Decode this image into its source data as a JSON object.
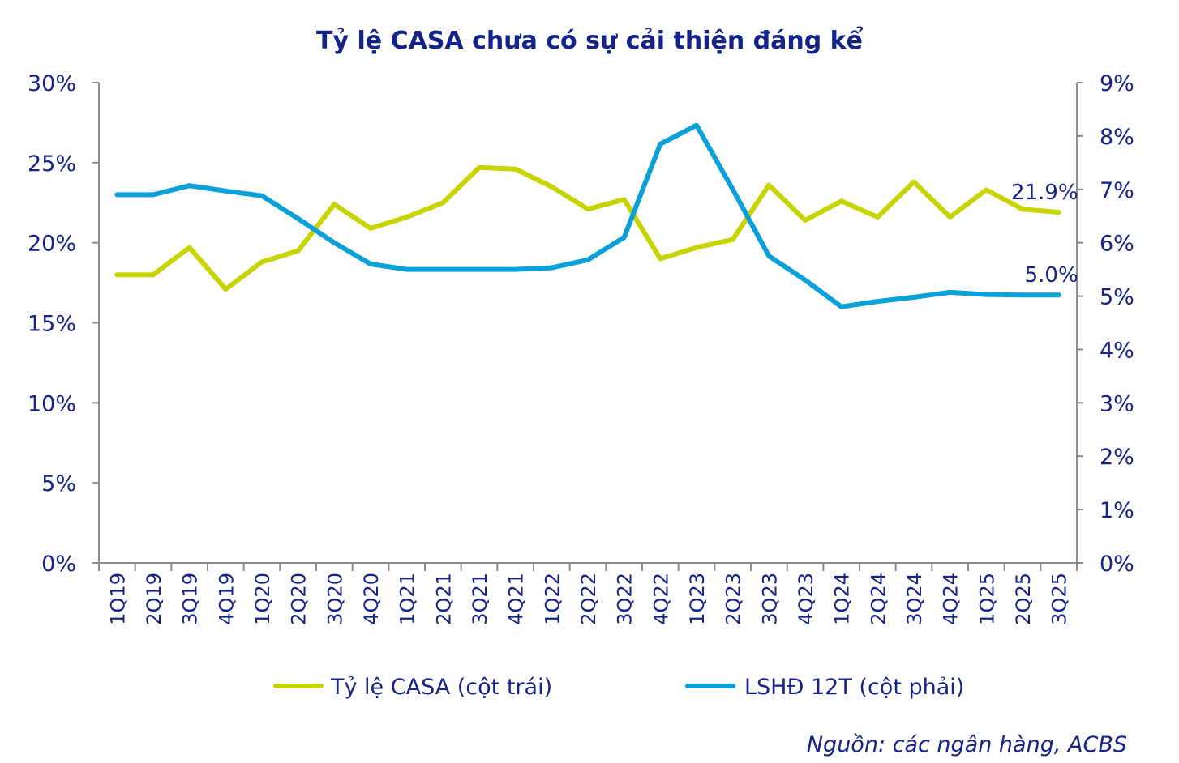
{
  "chart_data": {
    "type": "line",
    "title": "Tỷ lệ CASA chưa có sự cải thiện đáng kể",
    "categories": [
      "1Q19",
      "2Q19",
      "3Q19",
      "4Q19",
      "1Q20",
      "2Q20",
      "3Q20",
      "4Q20",
      "1Q21",
      "2Q21",
      "3Q21",
      "4Q21",
      "1Q22",
      "2Q22",
      "3Q22",
      "4Q22",
      "1Q23",
      "2Q23",
      "3Q23",
      "4Q23",
      "1Q24",
      "2Q24",
      "3Q24",
      "4Q24",
      "1Q25",
      "2Q25",
      "3Q25"
    ],
    "left_axis": {
      "ylim": [
        0,
        30
      ],
      "ticks": [
        "0%",
        "5%",
        "10%",
        "15%",
        "20%",
        "25%",
        "30%"
      ]
    },
    "right_axis": {
      "ylim": [
        0,
        9
      ],
      "ticks": [
        "0%",
        "1%",
        "2%",
        "3%",
        "4%",
        "5%",
        "6%",
        "7%",
        "8%",
        "9%"
      ]
    },
    "series": [
      {
        "name": "Tỷ lệ CASA (cột trái)",
        "axis": "left",
        "color": "#c8d400",
        "values": [
          18.0,
          18.0,
          19.7,
          17.1,
          18.8,
          19.5,
          22.4,
          20.9,
          21.6,
          22.5,
          24.7,
          24.6,
          23.5,
          22.1,
          22.7,
          19.0,
          19.7,
          20.2,
          23.6,
          21.4,
          22.6,
          21.6,
          23.8,
          21.6,
          23.3,
          22.1,
          21.9
        ]
      },
      {
        "name": "LSHĐ 12T (cột phải)",
        "axis": "right",
        "color": "#0aa0d8",
        "values": [
          6.9,
          6.9,
          7.07,
          6.97,
          6.88,
          6.45,
          6.0,
          5.6,
          5.5,
          5.5,
          5.5,
          5.5,
          5.53,
          5.68,
          6.1,
          7.85,
          8.2,
          7.0,
          5.75,
          5.3,
          4.8,
          4.9,
          4.98,
          5.07,
          5.03,
          5.02,
          5.02
        ]
      }
    ],
    "annotations": [
      {
        "series": 0,
        "index": 26,
        "text": "21.9%"
      },
      {
        "series": 1,
        "index": 26,
        "text": "5.0%"
      }
    ],
    "grid": false,
    "legend_position": "bottom",
    "source": "Nguồn:  các ngân hàng, ACBS"
  }
}
